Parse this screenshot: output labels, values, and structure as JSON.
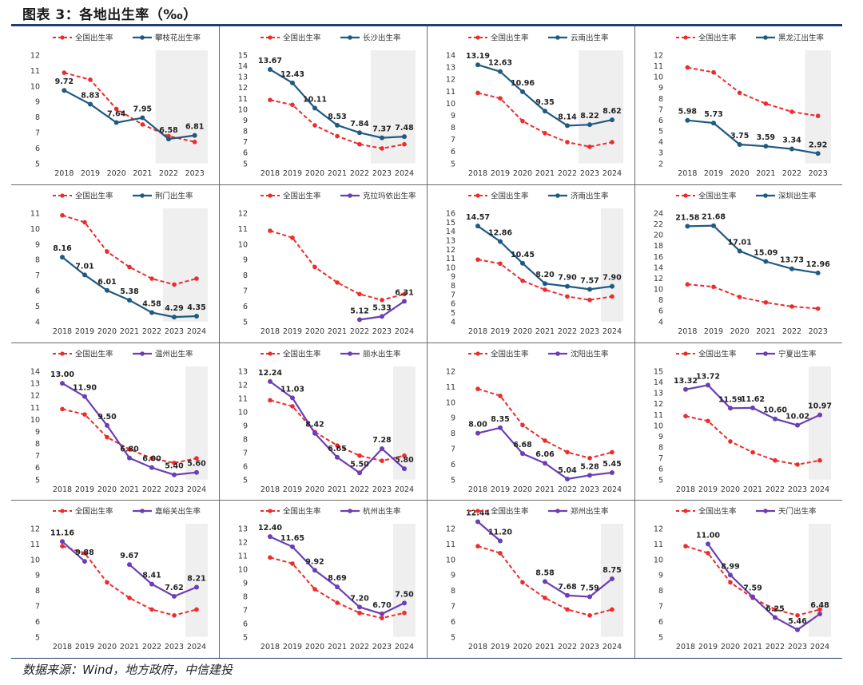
{
  "figure_title": "图表 3：各地出生率（‰）",
  "source_note": "数据来源：Wind，地方政府，中信建投",
  "colors": {
    "national": "#ee2b2b",
    "blue": "#1f5a82",
    "purple": "#6b3fb4",
    "shade": "#efefef",
    "axis": "#333333",
    "rule": "#1f3f6e"
  },
  "national": {
    "name": "全国出生率",
    "values": [
      10.86,
      10.41,
      8.52,
      7.52,
      6.77,
      6.39,
      6.77
    ]
  },
  "chart_data": [
    {
      "type": "line",
      "xcats": [
        "2018",
        "2019",
        "2020",
        "2021",
        "2022",
        "2023"
      ],
      "ylim": [
        5,
        12
      ],
      "ystep": 1,
      "shadeFrom": 4,
      "series": [
        {
          "name": "攀枝花出生率",
          "color": "blue",
          "values": [
            9.72,
            8.83,
            7.64,
            7.95,
            6.58,
            6.81
          ]
        }
      ]
    },
    {
      "type": "line",
      "xcats": [
        "2018",
        "2019",
        "2020",
        "2021",
        "2022",
        "2023",
        "2024"
      ],
      "ylim": [
        5,
        15
      ],
      "ystep": 1,
      "shadeFrom": 5,
      "series": [
        {
          "name": "长沙出生率",
          "color": "blue",
          "values": [
            13.67,
            12.43,
            10.11,
            8.53,
            7.84,
            7.37,
            7.48
          ]
        }
      ]
    },
    {
      "type": "line",
      "xcats": [
        "2018",
        "2019",
        "2020",
        "2021",
        "2022",
        "2023",
        "2024"
      ],
      "ylim": [
        5,
        14
      ],
      "ystep": 1,
      "shadeFrom": 5,
      "series": [
        {
          "name": "云南出生率",
          "color": "blue",
          "values": [
            13.19,
            12.63,
            10.96,
            9.35,
            8.14,
            8.22,
            8.62
          ]
        }
      ]
    },
    {
      "type": "line",
      "xcats": [
        "2018",
        "2019",
        "2020",
        "2021",
        "2022",
        "2023"
      ],
      "ylim": [
        2,
        12
      ],
      "ystep": 1,
      "shadeFrom": 5,
      "series": [
        {
          "name": "黑龙江出生率",
          "color": "blue",
          "values": [
            5.98,
            5.73,
            3.75,
            3.59,
            3.34,
            2.92
          ]
        }
      ]
    },
    {
      "type": "line",
      "xcats": [
        "2018",
        "2019",
        "2020",
        "2021",
        "2022",
        "2023",
        "2024"
      ],
      "ylim": [
        4,
        11
      ],
      "ystep": 1,
      "shadeFrom": 5,
      "series": [
        {
          "name": "荆门出生率",
          "color": "blue",
          "values": [
            8.16,
            7.01,
            6.01,
            5.38,
            4.58,
            4.29,
            4.35
          ]
        }
      ]
    },
    {
      "type": "line",
      "xcats": [
        "2018",
        "2019",
        "2020",
        "2021",
        "2022",
        "2023",
        "2024"
      ],
      "ylim": [
        5,
        12
      ],
      "ystep": 1,
      "shadeFrom": null,
      "series": [
        {
          "name": "克拉玛依出生率",
          "color": "purple",
          "values": [
            null,
            null,
            null,
            null,
            5.12,
            5.33,
            6.31
          ]
        }
      ]
    },
    {
      "type": "line",
      "xcats": [
        "2018",
        "2019",
        "2020",
        "2021",
        "2022",
        "2023",
        "2024"
      ],
      "ylim": [
        4,
        16
      ],
      "ystep": 1,
      "shadeFrom": 6,
      "series": [
        {
          "name": "济南出生率",
          "color": "blue",
          "values": [
            14.57,
            12.86,
            10.45,
            8.2,
            7.9,
            7.57,
            7.9
          ]
        }
      ]
    },
    {
      "type": "line",
      "xcats": [
        "2018",
        "2019",
        "2020",
        "2021",
        "2022",
        "2023"
      ],
      "ylim": [
        4,
        24
      ],
      "ystep": 2,
      "shadeFrom": null,
      "series": [
        {
          "name": "深圳出生率",
          "color": "blue",
          "values": [
            21.58,
            21.68,
            17.01,
            15.09,
            13.73,
            12.96
          ]
        }
      ]
    },
    {
      "type": "line",
      "xcats": [
        "2018",
        "2019",
        "2020",
        "2021",
        "2022",
        "2023",
        "2024"
      ],
      "ylim": [
        5,
        14
      ],
      "ystep": 1,
      "shadeFrom": 6,
      "series": [
        {
          "name": "温州出生率",
          "color": "purple",
          "values": [
            13.0,
            11.9,
            9.5,
            6.8,
            6.0,
            5.4,
            5.6
          ]
        }
      ]
    },
    {
      "type": "line",
      "xcats": [
        "2018",
        "2019",
        "2020",
        "2021",
        "2022",
        "2023",
        "2024"
      ],
      "ylim": [
        5,
        13
      ],
      "ystep": 1,
      "shadeFrom": 6,
      "series": [
        {
          "name": "丽水出生率",
          "color": "purple",
          "values": [
            12.24,
            11.03,
            8.42,
            6.65,
            5.5,
            7.28,
            5.8
          ]
        }
      ]
    },
    {
      "type": "line",
      "xcats": [
        "2018",
        "2019",
        "2020",
        "2021",
        "2022",
        "2023",
        "2024"
      ],
      "ylim": [
        5,
        12
      ],
      "ystep": 1,
      "shadeFrom": null,
      "series": [
        {
          "name": "沈阳出生率",
          "color": "purple",
          "values": [
            8.0,
            8.35,
            6.68,
            6.06,
            5.04,
            5.28,
            5.45
          ]
        }
      ]
    },
    {
      "type": "line",
      "xcats": [
        "2018",
        "2019",
        "2020",
        "2021",
        "2022",
        "2023",
        "2024"
      ],
      "ylim": [
        5,
        15
      ],
      "ystep": 1,
      "shadeFrom": 6,
      "series": [
        {
          "name": "宁夏出生率",
          "color": "purple",
          "values": [
            13.32,
            13.72,
            11.59,
            11.62,
            10.6,
            10.02,
            10.97
          ]
        }
      ]
    },
    {
      "type": "line",
      "xcats": [
        "2018",
        "2019",
        "2020",
        "2021",
        "2022",
        "2023",
        "2024"
      ],
      "ylim": [
        5,
        12
      ],
      "ystep": 1,
      "shadeFrom": 6,
      "series": [
        {
          "name": "嘉峪关出生率",
          "color": "purple",
          "values": [
            11.16,
            9.88,
            null,
            9.67,
            8.41,
            7.62,
            8.21
          ]
        }
      ]
    },
    {
      "type": "line",
      "xcats": [
        "2018",
        "2019",
        "2020",
        "2021",
        "2022",
        "2023",
        "2024"
      ],
      "ylim": [
        5,
        13
      ],
      "ystep": 1,
      "shadeFrom": 6,
      "series": [
        {
          "name": "杭州出生率",
          "color": "purple",
          "values": [
            12.4,
            11.65,
            9.92,
            8.69,
            7.2,
            6.7,
            7.5
          ]
        }
      ]
    },
    {
      "type": "line",
      "xcats": [
        "2018",
        "2019",
        "2020",
        "2021",
        "2022",
        "2023",
        "2024"
      ],
      "ylim": [
        5,
        12
      ],
      "ystep": 1,
      "shadeFrom": 6,
      "series": [
        {
          "name": "郑州出生率",
          "color": "purple",
          "values": [
            12.44,
            11.2,
            null,
            8.58,
            7.68,
            7.59,
            8.75
          ]
        }
      ]
    },
    {
      "type": "line",
      "xcats": [
        "2018",
        "2019",
        "2020",
        "2021",
        "2022",
        "2023",
        "2024"
      ],
      "ylim": [
        5,
        12
      ],
      "ystep": 1,
      "shadeFrom": 6,
      "series": [
        {
          "name": "天门出生率",
          "color": "purple",
          "values": [
            null,
            11.0,
            8.99,
            7.59,
            6.25,
            5.46,
            6.48
          ]
        }
      ]
    }
  ]
}
